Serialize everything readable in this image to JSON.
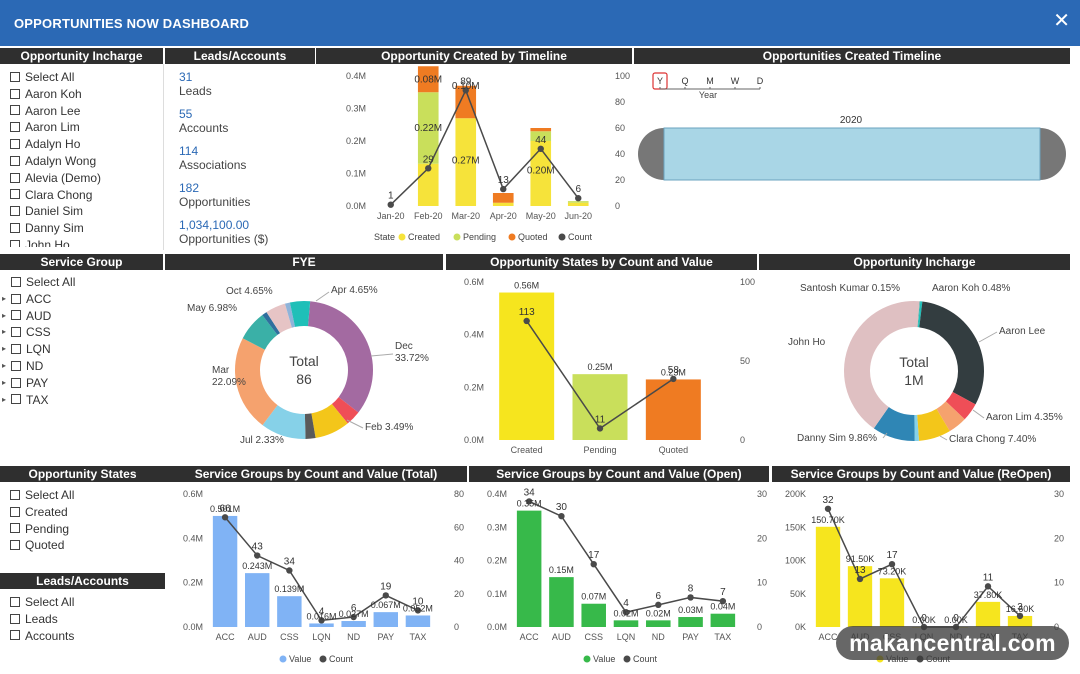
{
  "app": {
    "title": "OPPORTUNITIES NOW DASHBOARD",
    "close_icon": "close-icon"
  },
  "panels": {
    "opp_incharge_slicer": {
      "title": "Opportunity Incharge",
      "items": [
        "Select All",
        "Aaron Koh",
        "Aaron Lee",
        "Aaron Lim",
        "Adalyn Ho",
        "Adalyn Wong",
        "Alevia (Demo)",
        "Clara Chong",
        "Daniel Sim",
        "Danny Sim",
        "John Ho"
      ]
    },
    "leads_accounts_kpi": {
      "title": "Leads/Accounts",
      "items": [
        {
          "value": "31",
          "label": "Leads"
        },
        {
          "value": "55",
          "label": "Accounts"
        },
        {
          "value": "114",
          "label": "Associations"
        },
        {
          "value": "182",
          "label": "Opportunities"
        },
        {
          "value": "1,034,100.00",
          "label": "Opportunities ($)"
        }
      ]
    },
    "service_group_slicer": {
      "title": "Service Group",
      "items": [
        "Select All",
        "ACC",
        "AUD",
        "CSS",
        "LQN",
        "ND",
        "PAY",
        "TAX"
      ]
    },
    "opp_states_slicer": {
      "title": "Opportunity States",
      "items": [
        "Select All",
        "Created",
        "Pending",
        "Quoted"
      ]
    },
    "leads_accounts_slicer": {
      "title": "Leads/Accounts",
      "items": [
        "Select All",
        "Leads",
        "Accounts"
      ]
    },
    "timeline": {
      "title": "Opportunities Created Timeline",
      "granularity": [
        "Y",
        "Q",
        "M",
        "W",
        "D"
      ],
      "selected": "Y",
      "scale_label": "Year",
      "range_label": "2020"
    }
  },
  "colors": {
    "created": "#f6e33a",
    "pending": "#c9df5b",
    "quoted": "#ef7b22",
    "count": "#4a4a4a",
    "header": "#2b69b5",
    "blue_bar": "#80b3f5",
    "green_bar": "#37b94a",
    "yellow_bar": "#f6e51e"
  },
  "chart_data": [
    {
      "id": "timeline_chart",
      "title": "Opportunity Created by Timeline",
      "type": "bar",
      "stacked": true,
      "categories": [
        "Jan-20",
        "Feb-20",
        "Mar-20",
        "Apr-20",
        "May-20",
        "Jun-20"
      ],
      "series": [
        {
          "name": "Created",
          "values": [
            0,
            0.13,
            0.27,
            0.01,
            0.2,
            0.01
          ]
        },
        {
          "name": "Pending",
          "values": [
            0,
            0.22,
            0,
            0,
            0.03,
            0.005
          ]
        },
        {
          "name": "Quoted",
          "values": [
            0,
            0.08,
            0.1,
            0.03,
            0.01,
            0
          ]
        }
      ],
      "line": {
        "name": "Count",
        "values": [
          1,
          29,
          89,
          13,
          44,
          6
        ]
      },
      "bar_labels": [
        {
          "cat": "Feb-20",
          "label": "0.08M"
        },
        {
          "cat": "Feb-20",
          "label": "0.22M"
        },
        {
          "cat": "Mar-20",
          "label": "0.10M"
        },
        {
          "cat": "Mar-20",
          "label": "0.27M"
        },
        {
          "cat": "May-20",
          "label": "0.20M"
        }
      ],
      "yticks": [
        "0.0M",
        "0.1M",
        "0.2M",
        "0.3M",
        "0.4M"
      ],
      "y2ticks": [
        "0",
        "20",
        "40",
        "60",
        "80",
        "100"
      ],
      "ylim": [
        0,
        0.4
      ],
      "y2lim": [
        0,
        100
      ],
      "legend": {
        "title": "State",
        "items": [
          "Created",
          "Pending",
          "Quoted",
          "Count"
        ]
      }
    },
    {
      "id": "fye_donut",
      "title": "FYE",
      "type": "pie",
      "center_label": "Total",
      "center_value": "86",
      "slices": [
        {
          "label": "Dec",
          "value": 33.72,
          "display": "Dec\n33.72%",
          "color": "#a36aa1"
        },
        {
          "label": "Feb",
          "value": 3.49,
          "display": "Feb 3.49%",
          "color": "#ef4e57"
        },
        {
          "label": "Jan",
          "value": 8.14,
          "display": "",
          "color": "#f3c61a"
        },
        {
          "label": "Jul",
          "value": 2.33,
          "display": "Jul 2.33%",
          "color": "#5a5a5a"
        },
        {
          "label": "Jun",
          "value": 10.47,
          "display": "",
          "color": "#86d1e8"
        },
        {
          "label": "Mar",
          "value": 22.09,
          "display": "Mar\n22.09%",
          "color": "#f5a26e"
        },
        {
          "label": "May",
          "value": 6.98,
          "display": "May 6.98%",
          "color": "#3ab0a7"
        },
        {
          "label": "Nov",
          "value": 1.16,
          "display": "",
          "color": "#2f6f9e"
        },
        {
          "label": "Oct",
          "value": 4.65,
          "display": "Oct 4.65%",
          "color": "#e6c4c5"
        },
        {
          "label": "Sep",
          "value": 1.16,
          "display": "",
          "color": "#8fb3d9"
        },
        {
          "label": "Apr",
          "value": 4.65,
          "display": "Apr 4.65%",
          "color": "#1fbfb8"
        }
      ]
    },
    {
      "id": "states_chart",
      "title": "Opportunity States by Count and Value",
      "type": "bar",
      "categories": [
        "Created",
        "Pending",
        "Quoted"
      ],
      "values": [
        0.56,
        0.25,
        0.23
      ],
      "value_labels": [
        "0.56M",
        "0.25M",
        "0.23M"
      ],
      "line": {
        "name": "Count",
        "values": [
          113,
          11,
          58
        ]
      },
      "yticks": [
        "0.0M",
        "0.2M",
        "0.4M",
        "0.6M"
      ],
      "y2ticks": [
        "0",
        "50",
        "100"
      ],
      "ylim": [
        0,
        0.6
      ],
      "y2lim": [
        0,
        150
      ],
      "colors": [
        "#f6e51e",
        "#c9df5b",
        "#ef7b22"
      ]
    },
    {
      "id": "incharge_donut",
      "title": "Opportunity Incharge",
      "type": "pie",
      "center_label": "Total",
      "center_value": "1M",
      "slices": [
        {
          "label": "Aaron Koh",
          "value": 0.48,
          "display": "Aaron Koh 0.48%",
          "color": "#1fbfb8"
        },
        {
          "label": "Aaron Lee",
          "value": 31.0,
          "display": "Aaron Lee",
          "color": "#333d40"
        },
        {
          "label": "Adalyn",
          "value": 4.2,
          "display": "",
          "color": "#ef4e57"
        },
        {
          "label": "Aaron Lim",
          "value": 4.35,
          "display": "Aaron Lim 4.35%",
          "color": "#f5a26e"
        },
        {
          "label": "Clara Chong",
          "value": 7.4,
          "display": "Clara Chong 7.40%",
          "color": "#f3c61a"
        },
        {
          "label": "Daniel",
          "value": 1.0,
          "display": "",
          "color": "#86d1e8"
        },
        {
          "label": "Danny Sim",
          "value": 9.86,
          "display": "Danny Sim 9.86%",
          "color": "#2f86b5"
        },
        {
          "label": "John Ho",
          "value": 41.56,
          "display": "John Ho",
          "color": "#dfc0c2"
        },
        {
          "label": "Santosh Kumar",
          "value": 0.15,
          "display": "Santosh Kumar 0.15%",
          "color": "#3ab0a7"
        }
      ]
    },
    {
      "id": "sg_total",
      "title": "Service Groups by Count and Value (Total)",
      "type": "bar",
      "categories": [
        "ACC",
        "AUD",
        "CSS",
        "LQN",
        "ND",
        "PAY",
        "TAX"
      ],
      "values": [
        0.501,
        0.243,
        0.139,
        0.016,
        0.027,
        0.067,
        0.052
      ],
      "value_labels": [
        "0.501M",
        "0.243M",
        "0.139M",
        "0.016M",
        "0.027M",
        "0.067M",
        "0.052M"
      ],
      "line": {
        "name": "Count",
        "values": [
          66,
          43,
          34,
          4,
          6,
          19,
          10
        ]
      },
      "yticks": [
        "0.0M",
        "0.2M",
        "0.4M",
        "0.6M"
      ],
      "y2ticks": [
        "0",
        "20",
        "40",
        "60",
        "80"
      ],
      "ylim": [
        0,
        0.6
      ],
      "y2lim": [
        0,
        80
      ],
      "legend": {
        "items": [
          "Value",
          "Count"
        ]
      }
    },
    {
      "id": "sg_open",
      "title": "Service Groups by Count and Value (Open)",
      "type": "bar",
      "categories": [
        "ACC",
        "AUD",
        "CSS",
        "LQN",
        "ND",
        "PAY",
        "TAX"
      ],
      "values": [
        0.35,
        0.15,
        0.07,
        0.02,
        0.02,
        0.03,
        0.04
      ],
      "value_labels": [
        "0.35M",
        "0.15M",
        "0.07M",
        "0.02M",
        "0.02M",
        "0.03M",
        "0.04M"
      ],
      "line": {
        "name": "Count",
        "values": [
          34,
          30,
          17,
          4,
          6,
          8,
          7
        ]
      },
      "yticks": [
        "0.0M",
        "0.1M",
        "0.2M",
        "0.3M",
        "0.4M"
      ],
      "y2ticks": [
        "0",
        "10",
        "20",
        "30"
      ],
      "ylim": [
        0,
        0.4
      ],
      "y2lim": [
        0,
        36
      ],
      "legend": {
        "items": [
          "Value",
          "Count"
        ]
      }
    },
    {
      "id": "sg_reopen",
      "title": "Service Groups by Count and Value (ReOpen)",
      "type": "bar",
      "categories": [
        "ACC",
        "AUD",
        "CSS",
        "LQN",
        "ND",
        "PAY",
        "TAX"
      ],
      "values": [
        150.7,
        91.5,
        73.2,
        0,
        0,
        37.8,
        16.6
      ],
      "value_labels": [
        "150.70K",
        "91.50K",
        "73.20K",
        "0.00K",
        "0.00K",
        "37.80K",
        "16.60K"
      ],
      "line": {
        "name": "Count",
        "values": [
          32,
          13,
          17,
          0,
          0,
          11,
          3
        ]
      },
      "yticks": [
        "0K",
        "50K",
        "100K",
        "150K",
        "200K"
      ],
      "y2ticks": [
        "0",
        "10",
        "20",
        "30"
      ],
      "ylim": [
        0,
        200
      ],
      "y2lim": [
        0,
        36
      ],
      "legend": {
        "items": [
          "Value",
          "Count"
        ]
      }
    }
  ],
  "watermark": "makancentral.com"
}
